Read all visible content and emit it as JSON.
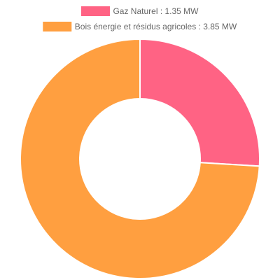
{
  "chart_data": {
    "type": "doughnut",
    "categories": [
      "Gaz Naturel : 1.35 MW",
      "Bois énergie et résidus agricoles : 3.85 MW"
    ],
    "values": [
      1.35,
      3.85
    ],
    "colors": [
      "#ff6384",
      "#ff9f40"
    ],
    "legend": "top"
  }
}
